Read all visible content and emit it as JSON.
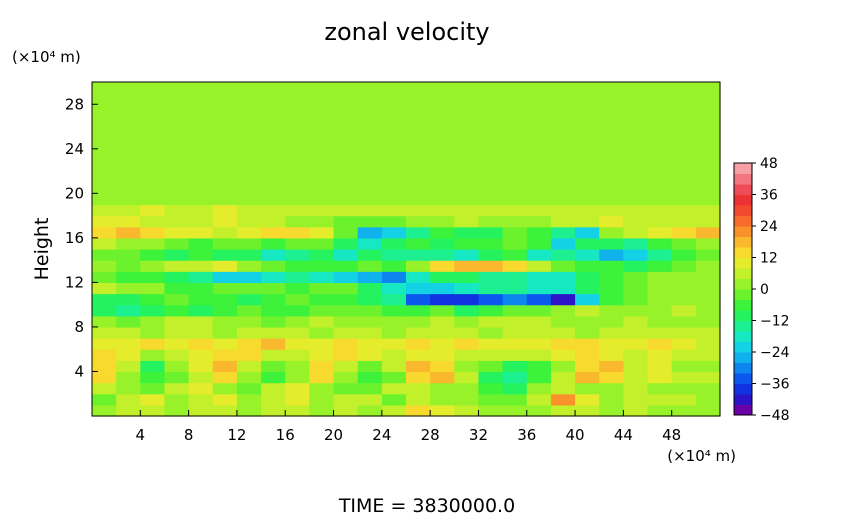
{
  "chart_data": {
    "type": "heatmap",
    "title": "zonal velocity",
    "ylabel": "Height",
    "y_unit_label": "(×10⁴ m)",
    "x_unit_label": "(×10⁴ m)",
    "footer": "TIME = 3830000.0",
    "x_range": [
      0,
      52
    ],
    "y_range": [
      0,
      30
    ],
    "x_ticks": [
      4,
      8,
      12,
      16,
      20,
      24,
      28,
      32,
      36,
      40,
      44,
      48
    ],
    "y_ticks": [
      4,
      8,
      12,
      16,
      20,
      24,
      28
    ],
    "colorbar": {
      "range": [
        -48,
        48
      ],
      "ticks": [
        48,
        36,
        24,
        12,
        0,
        -12,
        -24,
        -36,
        -48
      ],
      "colors": [
        "#6a00a8",
        "#2d14c8",
        "#1032e0",
        "#0a58ec",
        "#0c86ee",
        "#10b2ee",
        "#14d2e6",
        "#16e8c4",
        "#1cf090",
        "#24f25e",
        "#3cf23a",
        "#6cf22c",
        "#98f22a",
        "#c2f02a",
        "#e4ec2c",
        "#f8da2e",
        "#fab82e",
        "#fa922c",
        "#f86a2a",
        "#f24a2c",
        "#ec3232",
        "#ee4c56",
        "#f27680",
        "#f6a0a6"
      ]
    },
    "field": [
      [
        0,
        4,
        4,
        3,
        4,
        5,
        2,
        4,
        4,
        3,
        4,
        2,
        6,
        12,
        10,
        5,
        3,
        2,
        3,
        4,
        6,
        3,
        4,
        3,
        2,
        2
      ],
      [
        -3,
        6,
        8,
        3,
        6,
        8,
        2,
        5,
        8,
        0,
        6,
        5,
        -2,
        6,
        2,
        3,
        -4,
        -2,
        4,
        20,
        10,
        3,
        6,
        5,
        4,
        2
      ],
      [
        6,
        0,
        -4,
        4,
        8,
        3,
        -2,
        4,
        8,
        0,
        -4,
        -2,
        6,
        4,
        0,
        2,
        -6,
        -10,
        0,
        4,
        2,
        0,
        4,
        0,
        2,
        2
      ],
      [
        12,
        2,
        -8,
        -4,
        6,
        15,
        0,
        -6,
        0,
        12,
        0,
        -6,
        -3,
        14,
        18,
        6,
        -10,
        -14,
        -6,
        4,
        16,
        12,
        6,
        8,
        4,
        4
      ],
      [
        15,
        4,
        -9,
        0,
        8,
        18,
        4,
        -4,
        0,
        12,
        4,
        -3,
        4,
        18,
        14,
        0,
        -4,
        -10,
        -5,
        2,
        12,
        16,
        4,
        8,
        2,
        2
      ],
      [
        14,
        10,
        2,
        6,
        10,
        14,
        12,
        6,
        4,
        10,
        12,
        8,
        6,
        10,
        8,
        6,
        4,
        4,
        6,
        10,
        12,
        8,
        6,
        10,
        6,
        4
      ],
      [
        8,
        10,
        12,
        8,
        14,
        10,
        12,
        16,
        10,
        8,
        14,
        10,
        8,
        12,
        10,
        14,
        10,
        8,
        10,
        12,
        12,
        10,
        8,
        12,
        10,
        6
      ],
      [
        4,
        4,
        2,
        4,
        6,
        2,
        4,
        6,
        4,
        2,
        4,
        6,
        2,
        4,
        6,
        4,
        2,
        4,
        6,
        4,
        2,
        4,
        6,
        4,
        4,
        4
      ],
      [
        2,
        -2,
        0,
        4,
        4,
        2,
        0,
        -4,
        2,
        4,
        2,
        0,
        0,
        2,
        4,
        2,
        4,
        6,
        4,
        2,
        2,
        2,
        4,
        2,
        2,
        2
      ],
      [
        -12,
        -16,
        -10,
        -6,
        -10,
        -8,
        -4,
        -6,
        -6,
        -2,
        -4,
        -2,
        -8,
        -6,
        -4,
        -10,
        -8,
        -4,
        -2,
        0,
        4,
        2,
        0,
        2,
        4,
        2
      ],
      [
        -10,
        -12,
        -8,
        -4,
        -6,
        -8,
        -10,
        -6,
        -4,
        -8,
        -6,
        -10,
        -16,
        -36,
        -40,
        -38,
        -34,
        -32,
        -36,
        -44,
        -24,
        -8,
        -4,
        0,
        2,
        2
      ],
      [
        4,
        2,
        0,
        -6,
        -8,
        -4,
        -2,
        -4,
        -6,
        -2,
        -4,
        -10,
        -18,
        -24,
        -22,
        -20,
        -16,
        -14,
        -18,
        -20,
        -10,
        -6,
        -2,
        2,
        2,
        2
      ],
      [
        -4,
        -8,
        -6,
        -10,
        -14,
        -22,
        -22,
        -18,
        -14,
        -20,
        -24,
        -26,
        -30,
        -18,
        -12,
        -10,
        -14,
        -14,
        -20,
        -18,
        -12,
        -6,
        -4,
        2,
        2,
        2
      ],
      [
        0,
        -2,
        2,
        4,
        6,
        8,
        2,
        -4,
        -8,
        -6,
        -6,
        -4,
        -6,
        2,
        14,
        18,
        16,
        14,
        6,
        -4,
        -8,
        -6,
        -12,
        -8,
        -4,
        0
      ],
      [
        -2,
        -4,
        -6,
        -12,
        -8,
        -10,
        -12,
        -18,
        -16,
        -10,
        -20,
        -10,
        -14,
        -16,
        -14,
        -18,
        -12,
        -8,
        -18,
        -14,
        -18,
        -26,
        -24,
        -16,
        -8,
        -4
      ],
      [
        4,
        2,
        0,
        -2,
        -6,
        -4,
        -2,
        -8,
        -4,
        -2,
        -10,
        -20,
        -10,
        -6,
        -12,
        -8,
        -6,
        -4,
        -8,
        -22,
        -12,
        -10,
        -14,
        -8,
        -2,
        2
      ],
      [
        12,
        18,
        14,
        10,
        8,
        6,
        8,
        12,
        14,
        8,
        -4,
        -26,
        -22,
        -14,
        -8,
        -12,
        -10,
        -4,
        -8,
        -14,
        -22,
        0,
        6,
        10,
        14,
        18
      ],
      [
        10,
        8,
        6,
        4,
        6,
        8,
        6,
        4,
        2,
        0,
        -4,
        -4,
        -2,
        0,
        2,
        4,
        2,
        0,
        2,
        4,
        6,
        8,
        6,
        4,
        4,
        6
      ],
      [
        4,
        6,
        8,
        4,
        6,
        8,
        4,
        6,
        6,
        4,
        6,
        4,
        6,
        4,
        6,
        4,
        4,
        6,
        4,
        6,
        4,
        6,
        4,
        6,
        4,
        4
      ],
      [
        2,
        2,
        2,
        2,
        2,
        2,
        2,
        2,
        2,
        2,
        2,
        2,
        2,
        2,
        2,
        2,
        2,
        2,
        2,
        2,
        2,
        2,
        2,
        2,
        2,
        2
      ],
      [
        2,
        2,
        2,
        2,
        2,
        2,
        2,
        2,
        2,
        2,
        2,
        2,
        2,
        2,
        2,
        2,
        2,
        2,
        2,
        2,
        2,
        2,
        2,
        2,
        2,
        2
      ],
      [
        2,
        2,
        2,
        2,
        2,
        2,
        2,
        2,
        2,
        2,
        2,
        2,
        2,
        2,
        2,
        2,
        2,
        2,
        2,
        2,
        2,
        2,
        2,
        2,
        2,
        2
      ],
      [
        2,
        2,
        2,
        2,
        2,
        2,
        2,
        2,
        2,
        2,
        2,
        2,
        2,
        2,
        2,
        2,
        2,
        2,
        2,
        2,
        2,
        2,
        2,
        2,
        2,
        2
      ],
      [
        2,
        2,
        2,
        2,
        2,
        2,
        2,
        2,
        2,
        2,
        2,
        2,
        2,
        2,
        2,
        2,
        2,
        2,
        2,
        2,
        2,
        2,
        2,
        2,
        2,
        2
      ],
      [
        2,
        2,
        2,
        2,
        2,
        2,
        2,
        2,
        2,
        2,
        2,
        2,
        2,
        2,
        2,
        2,
        2,
        2,
        2,
        2,
        2,
        2,
        2,
        2,
        2,
        2
      ],
      [
        2,
        2,
        2,
        2,
        2,
        2,
        2,
        2,
        2,
        2,
        2,
        2,
        2,
        2,
        2,
        2,
        2,
        2,
        2,
        2,
        2,
        2,
        2,
        2,
        2,
        2
      ],
      [
        2,
        2,
        2,
        2,
        2,
        2,
        2,
        2,
        2,
        2,
        2,
        2,
        2,
        2,
        2,
        2,
        2,
        2,
        2,
        2,
        2,
        2,
        2,
        2,
        2,
        2
      ],
      [
        2,
        2,
        2,
        2,
        2,
        2,
        2,
        2,
        2,
        2,
        2,
        2,
        2,
        2,
        2,
        2,
        2,
        2,
        2,
        2,
        2,
        2,
        2,
        2,
        2,
        2
      ],
      [
        2,
        2,
        2,
        2,
        2,
        2,
        2,
        2,
        2,
        2,
        2,
        2,
        2,
        2,
        2,
        2,
        2,
        2,
        2,
        2,
        2,
        2,
        2,
        2,
        2,
        2
      ],
      [
        2,
        2,
        2,
        2,
        2,
        2,
        2,
        2,
        2,
        2,
        2,
        2,
        2,
        2,
        2,
        2,
        2,
        2,
        2,
        2,
        2,
        2,
        2,
        2,
        2,
        2
      ]
    ]
  }
}
